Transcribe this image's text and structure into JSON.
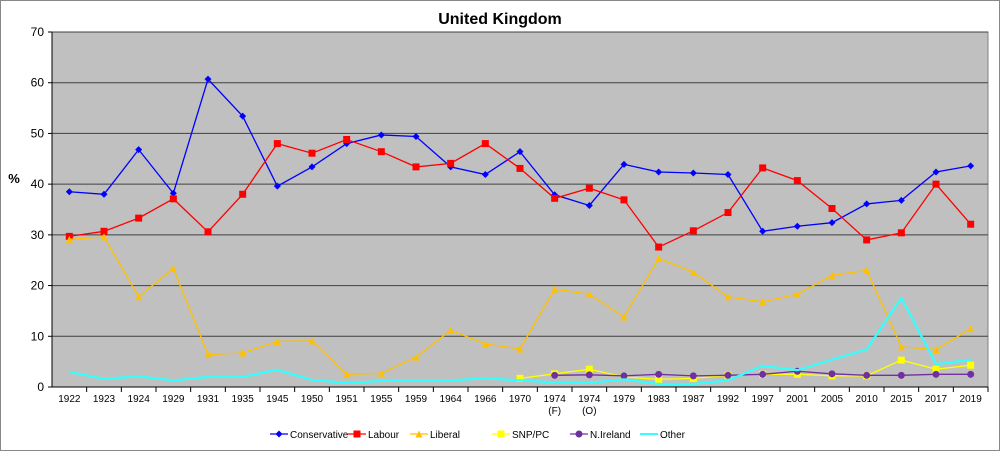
{
  "chart_data": {
    "type": "line",
    "title": "United Kingdom",
    "ylabel": "%",
    "xlabel": "",
    "ylim": [
      0,
      70
    ],
    "yticks": [
      0,
      10,
      20,
      30,
      40,
      50,
      60,
      70
    ],
    "grid": true,
    "legend": "bottom",
    "plot_background": "#c0c0c0",
    "categories": [
      "1922",
      "1923",
      "1924",
      "1929",
      "1931",
      "1935",
      "1945",
      "1950",
      "1951",
      "1955",
      "1959",
      "1964",
      "1966",
      "1970",
      "1974\n(F)",
      "1974\n(O)",
      "1979",
      "1983",
      "1987",
      "1992",
      "1997",
      "2001",
      "2005",
      "2010",
      "2015",
      "2017",
      "2019"
    ],
    "series": [
      {
        "name": "Conservative",
        "color": "#0000ff",
        "marker": "diamond",
        "values": [
          38.5,
          38.0,
          46.8,
          38.2,
          60.7,
          53.4,
          39.6,
          43.4,
          48.0,
          49.7,
          49.4,
          43.4,
          41.9,
          46.4,
          37.9,
          35.8,
          43.9,
          42.4,
          42.2,
          41.9,
          30.7,
          31.7,
          32.4,
          36.1,
          36.8,
          42.4,
          43.6
        ]
      },
      {
        "name": "Labour",
        "color": "#ff0000",
        "marker": "square",
        "values": [
          29.7,
          30.7,
          33.3,
          37.1,
          30.6,
          38.0,
          48.0,
          46.1,
          48.8,
          46.4,
          43.4,
          44.1,
          48.0,
          43.1,
          37.2,
          39.2,
          36.9,
          27.6,
          30.8,
          34.4,
          43.2,
          40.7,
          35.2,
          29.0,
          30.4,
          40.0,
          32.1
        ]
      },
      {
        "name": "Liberal",
        "color": "#ffc000",
        "marker": "triangle",
        "values": [
          29.1,
          29.6,
          17.8,
          23.4,
          6.4,
          6.7,
          9.0,
          9.1,
          2.5,
          2.7,
          5.9,
          11.2,
          8.5,
          7.5,
          19.3,
          18.3,
          13.8,
          25.4,
          22.6,
          17.8,
          16.8,
          18.3,
          22.0,
          23.0,
          7.9,
          7.4,
          11.5
        ]
      },
      {
        "name": "SNP/PC",
        "color": "#ffff00",
        "marker": "square",
        "values": [
          null,
          null,
          null,
          null,
          null,
          null,
          null,
          null,
          null,
          null,
          null,
          null,
          null,
          1.7,
          2.6,
          3.5,
          2.0,
          1.5,
          1.7,
          2.3,
          2.5,
          2.5,
          2.2,
          2.2,
          5.3,
          3.5,
          4.3
        ]
      },
      {
        "name": "N.Ireland",
        "color": "#7030a0",
        "marker": "circle",
        "values": [
          null,
          null,
          null,
          null,
          null,
          null,
          null,
          null,
          null,
          null,
          null,
          null,
          null,
          null,
          2.3,
          2.4,
          2.2,
          2.5,
          2.2,
          2.3,
          2.5,
          3.1,
          2.6,
          2.3,
          2.3,
          2.5,
          2.5
        ]
      },
      {
        "name": "Other",
        "color": "#33ffff",
        "marker": "none",
        "values": [
          3.0,
          1.6,
          2.1,
          1.3,
          2.0,
          2.0,
          3.4,
          1.4,
          0.8,
          1.2,
          1.3,
          1.3,
          1.7,
          1.3,
          0.9,
          0.8,
          1.5,
          0.6,
          0.6,
          1.3,
          4.2,
          3.3,
          5.4,
          7.4,
          17.6,
          4.5,
          5.4
        ]
      }
    ]
  }
}
